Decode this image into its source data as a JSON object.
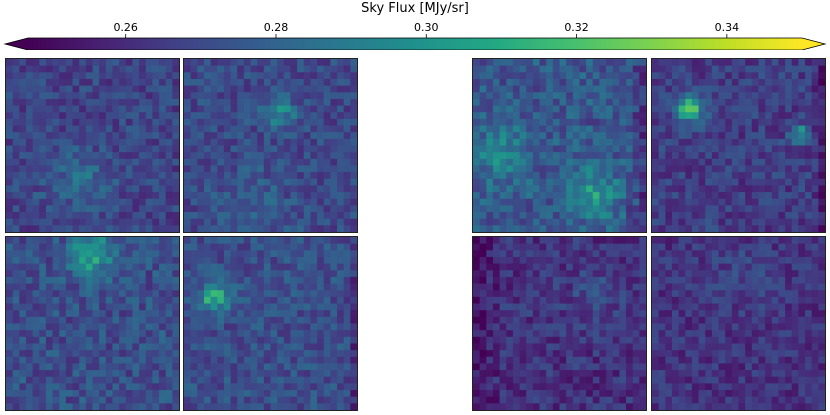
{
  "chart_data": {
    "type": "heatmap",
    "title": "Sky Flux [MJy/sr]",
    "colormap": "viridis",
    "colorbar": {
      "vmin": 0.247,
      "vmax": 0.35,
      "extend": "both",
      "ticks": [
        0.26,
        0.28,
        0.3,
        0.32,
        0.34
      ],
      "tick_labels": [
        "0.26",
        "0.28",
        "0.30",
        "0.32",
        "0.34"
      ]
    },
    "panels": [
      {
        "id": "p1",
        "row": 1,
        "col": 1,
        "base": 0.268,
        "spread": 0.01,
        "seed": 11,
        "hotspots": [
          {
            "u": 0.42,
            "v": 0.7,
            "r": 0.18,
            "amp": 0.018
          }
        ],
        "dark_edges": []
      },
      {
        "id": "p2",
        "row": 1,
        "col": 2,
        "base": 0.27,
        "spread": 0.01,
        "seed": 23,
        "hotspots": [
          {
            "u": 0.55,
            "v": 0.3,
            "r": 0.09,
            "amp": 0.03
          },
          {
            "u": 0.4,
            "v": 0.85,
            "r": 0.2,
            "amp": 0.01
          }
        ],
        "dark_edges": []
      },
      {
        "id": "p3",
        "row": 1,
        "col": 3,
        "base": 0.275,
        "spread": 0.012,
        "seed": 37,
        "hotspots": [
          {
            "u": 0.7,
            "v": 0.78,
            "r": 0.15,
            "amp": 0.026
          },
          {
            "u": 0.15,
            "v": 0.55,
            "r": 0.18,
            "amp": 0.02
          }
        ],
        "dark_edges": [
          {
            "side": "right",
            "width": 0.12
          }
        ]
      },
      {
        "id": "p4",
        "row": 1,
        "col": 4,
        "base": 0.266,
        "spread": 0.01,
        "seed": 49,
        "hotspots": [
          {
            "u": 0.22,
            "v": 0.3,
            "r": 0.08,
            "amp": 0.05
          },
          {
            "u": 0.85,
            "v": 0.44,
            "r": 0.05,
            "amp": 0.045
          }
        ],
        "dark_edges": [
          {
            "side": "right",
            "width": 0.08
          }
        ]
      },
      {
        "id": "p5",
        "row": 2,
        "col": 1,
        "base": 0.272,
        "spread": 0.011,
        "seed": 61,
        "hotspots": [
          {
            "u": 0.5,
            "v": 0.1,
            "r": 0.12,
            "amp": 0.04
          }
        ],
        "dark_edges": []
      },
      {
        "id": "p6",
        "row": 2,
        "col": 2,
        "base": 0.272,
        "spread": 0.01,
        "seed": 73,
        "hotspots": [
          {
            "u": 0.18,
            "v": 0.35,
            "r": 0.08,
            "amp": 0.05
          }
        ],
        "dark_edges": [
          {
            "side": "right",
            "width": 0.06
          }
        ]
      },
      {
        "id": "p7",
        "row": 2,
        "col": 3,
        "base": 0.262,
        "spread": 0.01,
        "seed": 83,
        "hotspots": [
          {
            "u": 0.7,
            "v": 0.35,
            "r": 0.2,
            "amp": 0.008
          }
        ],
        "dark_edges": [
          {
            "side": "left",
            "width": 0.14
          }
        ]
      },
      {
        "id": "p8",
        "row": 2,
        "col": 4,
        "base": 0.262,
        "spread": 0.009,
        "seed": 97,
        "hotspots": [
          {
            "u": 0.5,
            "v": 0.2,
            "r": 0.25,
            "amp": 0.006
          }
        ],
        "dark_edges": []
      }
    ]
  }
}
